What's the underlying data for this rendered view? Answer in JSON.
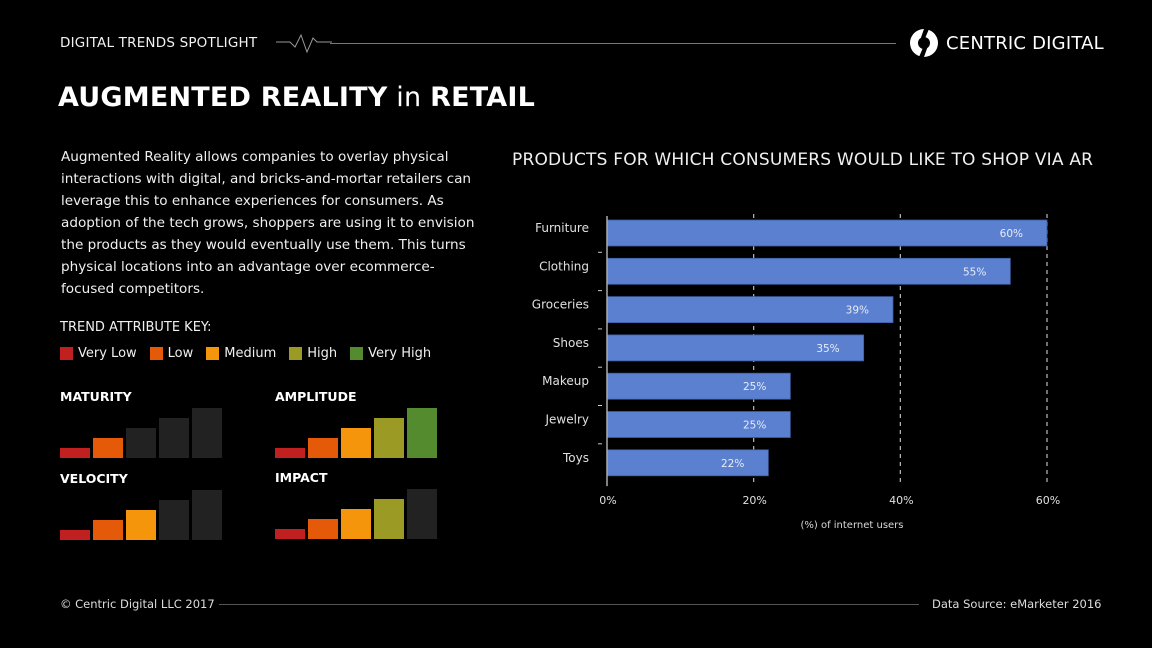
{
  "header": {
    "eyebrow": "DIGITAL TRENDS SPOTLIGHT",
    "brand": "CENTRIC DIGITAL",
    "title_bold_1": "AUGMENTED REALITY",
    "title_light": " in ",
    "title_bold_2": "RETAIL"
  },
  "intro": "Augmented Reality allows companies to overlay physical interactions with digital, and bricks-and-mortar retailers can leverage this to enhance experiences for consumers. As adoption of the tech grows, shoppers are using it to envision the products as they would eventually use them. This turns physical locations into an advantage over ecommerce-focused competitors.",
  "key": {
    "title": "TREND ATTRIBUTE KEY:",
    "levels": [
      {
        "label": "Very Low",
        "color": "#c0201f"
      },
      {
        "label": "Low",
        "color": "#e55a08"
      },
      {
        "label": "Medium",
        "color": "#f5950b"
      },
      {
        "label": "High",
        "color": "#9a9a25"
      },
      {
        "label": "Very High",
        "color": "#558b2f"
      }
    ],
    "inactive_color": "#222222"
  },
  "attributes": [
    {
      "id": "maturity",
      "label": "MATURITY",
      "level": 2
    },
    {
      "id": "amplitude",
      "label": "AMPLITUDE",
      "level": 5
    },
    {
      "id": "velocity",
      "label": "VELOCITY",
      "level": 3
    },
    {
      "id": "impact",
      "label": "IMPACT",
      "level": 4
    }
  ],
  "chart_data": {
    "type": "bar",
    "orientation": "horizontal",
    "title": "PRODUCTS FOR WHICH CONSUMERS WOULD LIKE TO SHOP VIA AR",
    "categories": [
      "Furniture",
      "Clothing",
      "Groceries",
      "Shoes",
      "Makeup",
      "Jewelry",
      "Toys"
    ],
    "values": [
      60,
      55,
      39,
      35,
      25,
      25,
      22
    ],
    "data_labels": [
      "60%",
      "55%",
      "39%",
      "35%",
      "25%",
      "25%",
      "22%"
    ],
    "xlabel": "(%) of internet users",
    "ylabel": "",
    "xlim": [
      0,
      60
    ],
    "xticks": [
      0,
      20,
      40,
      60
    ],
    "xtick_labels": [
      "0%",
      "20%",
      "40%",
      "60%"
    ],
    "grid": "vertical dashed",
    "bar_color": "#5b80d0"
  },
  "footer": {
    "copyright": "© Centric Digital LLC 2017",
    "source": "Data Source: eMarketer 2016"
  }
}
